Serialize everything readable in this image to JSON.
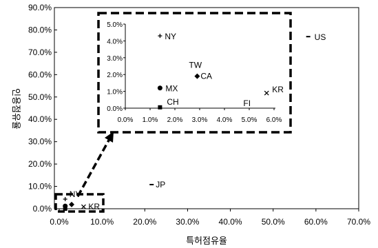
{
  "chart_data": [
    {
      "type": "scatter",
      "title": "",
      "xlabel": "특허점유율",
      "ylabel": "인용점유율",
      "xlim": [
        0,
        70
      ],
      "ylim": [
        0,
        90
      ],
      "x_ticks": [
        "0.0%",
        "10.0%",
        "20.0%",
        "30.0%",
        "40.0%",
        "50.0%",
        "60.0%",
        "70.0%"
      ],
      "y_ticks": [
        "0.0%",
        "10.0%",
        "20.0%",
        "30.0%",
        "40.0%",
        "50.0%",
        "60.0%",
        "70.0%",
        "80.0%",
        "90.0%"
      ],
      "grid": false,
      "points": [
        {
          "label": "US",
          "x": 58.2,
          "y": 77.0,
          "marker": "dash"
        },
        {
          "label": "JP",
          "x": 21.6,
          "y": 10.8,
          "marker": "dash"
        },
        {
          "label": "NY",
          "x": 1.4,
          "y": 4.3,
          "marker": "plus"
        },
        {
          "label": "CA",
          "x": 2.9,
          "y": 1.9,
          "marker": "diamond"
        },
        {
          "label": "KR",
          "x": 5.7,
          "y": 0.9,
          "marker": "x"
        },
        {
          "label": "MX",
          "x": 1.4,
          "y": 1.2,
          "marker": "circle"
        },
        {
          "label": "CH",
          "x": 1.4,
          "y": 0.0,
          "marker": "square"
        }
      ]
    },
    {
      "type": "scatter",
      "title": "",
      "xlabel": "",
      "ylabel": "",
      "xlim": [
        0,
        6
      ],
      "ylim": [
        0,
        5
      ],
      "x_ticks": [
        "0.0%",
        "1.0%",
        "2.0%",
        "3.0%",
        "4.0%",
        "5.0%",
        "6.0%"
      ],
      "y_ticks": [
        "0.0%",
        "1.0%",
        "2.0%",
        "3.0%",
        "4.0%",
        "5.0%"
      ],
      "grid": false,
      "points": [
        {
          "label": "NY",
          "x": 1.4,
          "y": 4.3,
          "marker": "plus"
        },
        {
          "label": "TW",
          "x": 2.9,
          "y": 1.9,
          "marker": "none"
        },
        {
          "label": "CA",
          "x": 2.9,
          "y": 1.9,
          "marker": "diamond"
        },
        {
          "label": "MX",
          "x": 1.4,
          "y": 1.2,
          "marker": "circle"
        },
        {
          "label": "CH",
          "x": 1.4,
          "y": 0.05,
          "marker": "square"
        },
        {
          "label": "FI",
          "x": 4.9,
          "y": 0.05,
          "marker": "none"
        },
        {
          "label": "KR",
          "x": 5.7,
          "y": 0.9,
          "marker": "x"
        }
      ]
    }
  ]
}
